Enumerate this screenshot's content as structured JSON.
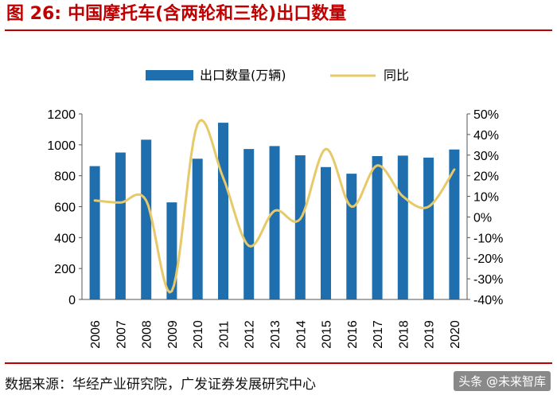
{
  "figure": {
    "title_prefix": "图 26:",
    "title": "中国摩托车(含两轮和三轮)出口数量",
    "source": "数据来源：华经产业研究院，广发证券发展研究中心",
    "watermark": "头条 @未来智库"
  },
  "colors": {
    "title": "#c00000",
    "bar": "#1f6fae",
    "line": "#e8c96a"
  },
  "chart_data": {
    "type": "bar",
    "categories": [
      "2006",
      "2007",
      "2008",
      "2009",
      "2010",
      "2011",
      "2012",
      "2013",
      "2014",
      "2015",
      "2016",
      "2017",
      "2018",
      "2019",
      "2020"
    ],
    "series": [
      {
        "name": "出口数量(万辆)",
        "type": "bar",
        "axis": "left",
        "values": [
          862,
          950,
          1033,
          628,
          910,
          1143,
          973,
          992,
          932,
          856,
          813,
          927,
          930,
          917,
          970
        ]
      },
      {
        "name": "同比",
        "type": "line",
        "axis": "right",
        "unit": "%",
        "values": [
          8,
          7,
          8,
          -36,
          45,
          19,
          -14,
          3,
          -1,
          33,
          5,
          25,
          10,
          5,
          23
        ]
      }
    ],
    "y_left": {
      "min": 0,
      "max": 1200,
      "ticks": [
        "0",
        "200",
        "400",
        "600",
        "800",
        "1000",
        "1200"
      ]
    },
    "y_right": {
      "min": -40,
      "max": 50,
      "ticks": [
        "-40%",
        "-30%",
        "-20%",
        "-10%",
        "0%",
        "10%",
        "20%",
        "30%",
        "40%",
        "50%"
      ]
    },
    "legend_position": "top-center",
    "grid": false
  }
}
